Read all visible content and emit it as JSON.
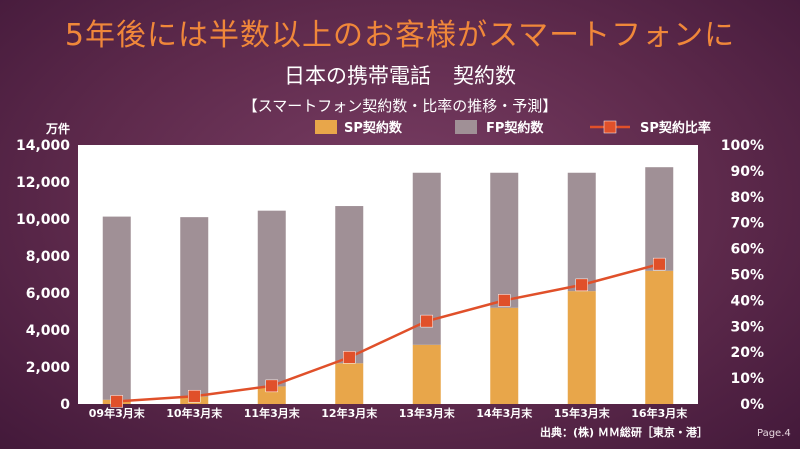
{
  "headline": "5年後には半数以上のお客様がスマートフォンに",
  "subtitle_main": "日本の携帯電話",
  "subtitle_sub": "契約数",
  "caption": "【スマートフォン契約数・比率の推移・予測】",
  "source": "出典：(株) ＭＭ総研［東京・港］",
  "page": "Page.4",
  "colors": {
    "sp": "#e8a64a",
    "fp": "#a09096",
    "ratio_line": "#e0502a",
    "marker": "#e0502a",
    "plot_bg": "#ffffff"
  },
  "chart_data": {
    "type": "bar",
    "stacked": true,
    "categories": [
      "09年3月末",
      "10年3月末",
      "11年3月末",
      "12年3月末",
      "13年3月末",
      "14年3月末",
      "15年3月末",
      "16年3月末"
    ],
    "series": [
      {
        "name": "SP契約数",
        "kind": "bar",
        "axis": "left",
        "values": [
          230,
          400,
          950,
          2200,
          3200,
          5200,
          6100,
          7200
        ]
      },
      {
        "name": "FP契約数",
        "kind": "bar",
        "axis": "left",
        "values": [
          9900,
          9700,
          9500,
          8500,
          9300,
          7300,
          6400,
          5600
        ]
      },
      {
        "name": "SP契約比率",
        "kind": "line",
        "axis": "right",
        "values": [
          1,
          3,
          7,
          18,
          32,
          40,
          46,
          54
        ]
      }
    ],
    "y_left": {
      "label": "万件",
      "min": 0,
      "max": 14000,
      "ticks": [
        "0",
        "2,000",
        "4,000",
        "6,000",
        "8,000",
        "10,000",
        "12,000",
        "14,000"
      ]
    },
    "y_right": {
      "min": 0,
      "max": 100,
      "ticks": [
        "0%",
        "10%",
        "20%",
        "30%",
        "40%",
        "50%",
        "60%",
        "70%",
        "80%",
        "90%",
        "100%"
      ]
    },
    "legend_position": "top-right",
    "grid": false
  }
}
